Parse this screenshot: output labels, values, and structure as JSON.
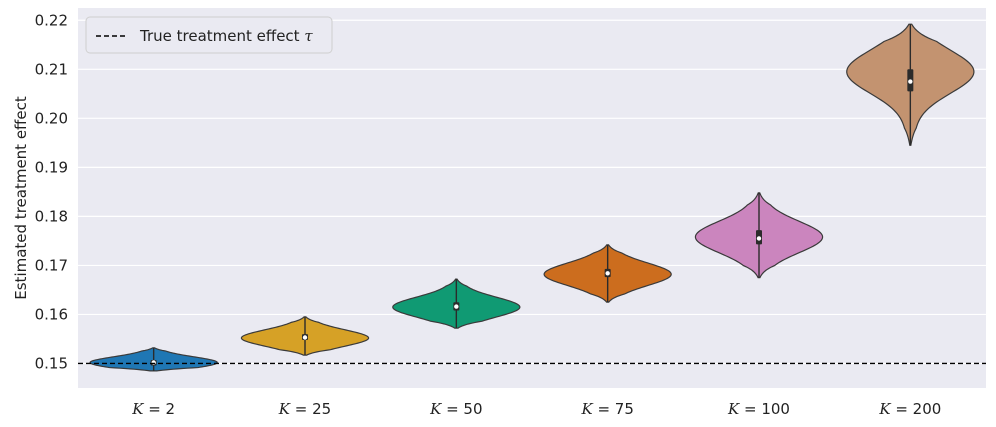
{
  "chart_data": {
    "type": "violin",
    "ylabel": "Estimated treatment effect",
    "xlabel": "",
    "ylim": [
      0.145,
      0.2225
    ],
    "yticks": [
      0.15,
      0.16,
      0.17,
      0.18,
      0.19,
      0.2,
      0.21,
      0.22
    ],
    "ytick_labels": [
      "0.15",
      "0.16",
      "0.17",
      "0.18",
      "0.19",
      "0.20",
      "0.21",
      "0.22"
    ],
    "categories": [
      "K = 2",
      "K = 25",
      "K = 50",
      "K = 75",
      "K = 100",
      "K = 200"
    ],
    "category_math": [
      {
        "var": "K",
        "eq": " = ",
        "num": "2"
      },
      {
        "var": "K",
        "eq": " = ",
        "num": "25"
      },
      {
        "var": "K",
        "eq": " = ",
        "num": "50"
      },
      {
        "var": "K",
        "eq": " = ",
        "num": "75"
      },
      {
        "var": "K",
        "eq": " = ",
        "num": "100"
      },
      {
        "var": "K",
        "eq": " = ",
        "num": "200"
      }
    ],
    "series": [
      {
        "category": "K = 2",
        "min": 0.1485,
        "q1": 0.1496,
        "median": 0.1502,
        "q3": 0.1507,
        "max": 0.1532,
        "mode": 0.1502,
        "color": "#1f77b4"
      },
      {
        "category": "K = 25",
        "min": 0.1517,
        "q1": 0.1548,
        "median": 0.1553,
        "q3": 0.156,
        "max": 0.1595,
        "mode": 0.1552,
        "color": "#d6a126"
      },
      {
        "category": "K = 50",
        "min": 0.1572,
        "q1": 0.1608,
        "median": 0.1616,
        "q3": 0.1625,
        "max": 0.1672,
        "mode": 0.1615,
        "color": "#109a73"
      },
      {
        "category": "K = 75",
        "min": 0.1625,
        "q1": 0.1676,
        "median": 0.1684,
        "q3": 0.1693,
        "max": 0.1742,
        "mode": 0.1682,
        "color": "#cc6d1e"
      },
      {
        "category": "K = 100",
        "min": 0.1675,
        "q1": 0.1743,
        "median": 0.1755,
        "q3": 0.1772,
        "max": 0.1848,
        "mode": 0.1758,
        "color": "#cb85be"
      },
      {
        "category": "K = 200",
        "min": 0.1945,
        "q1": 0.2055,
        "median": 0.2075,
        "q3": 0.21,
        "max": 0.2192,
        "mode": 0.2095,
        "color": "#c39370"
      }
    ],
    "reference_line": {
      "value": 0.15,
      "style": "dashed",
      "color": "#000000"
    },
    "legend": {
      "position": "top-left",
      "label_text": "True treatment effect ",
      "label_symbol": "τ"
    },
    "grid": true,
    "background_color": "#eaeaf2"
  }
}
